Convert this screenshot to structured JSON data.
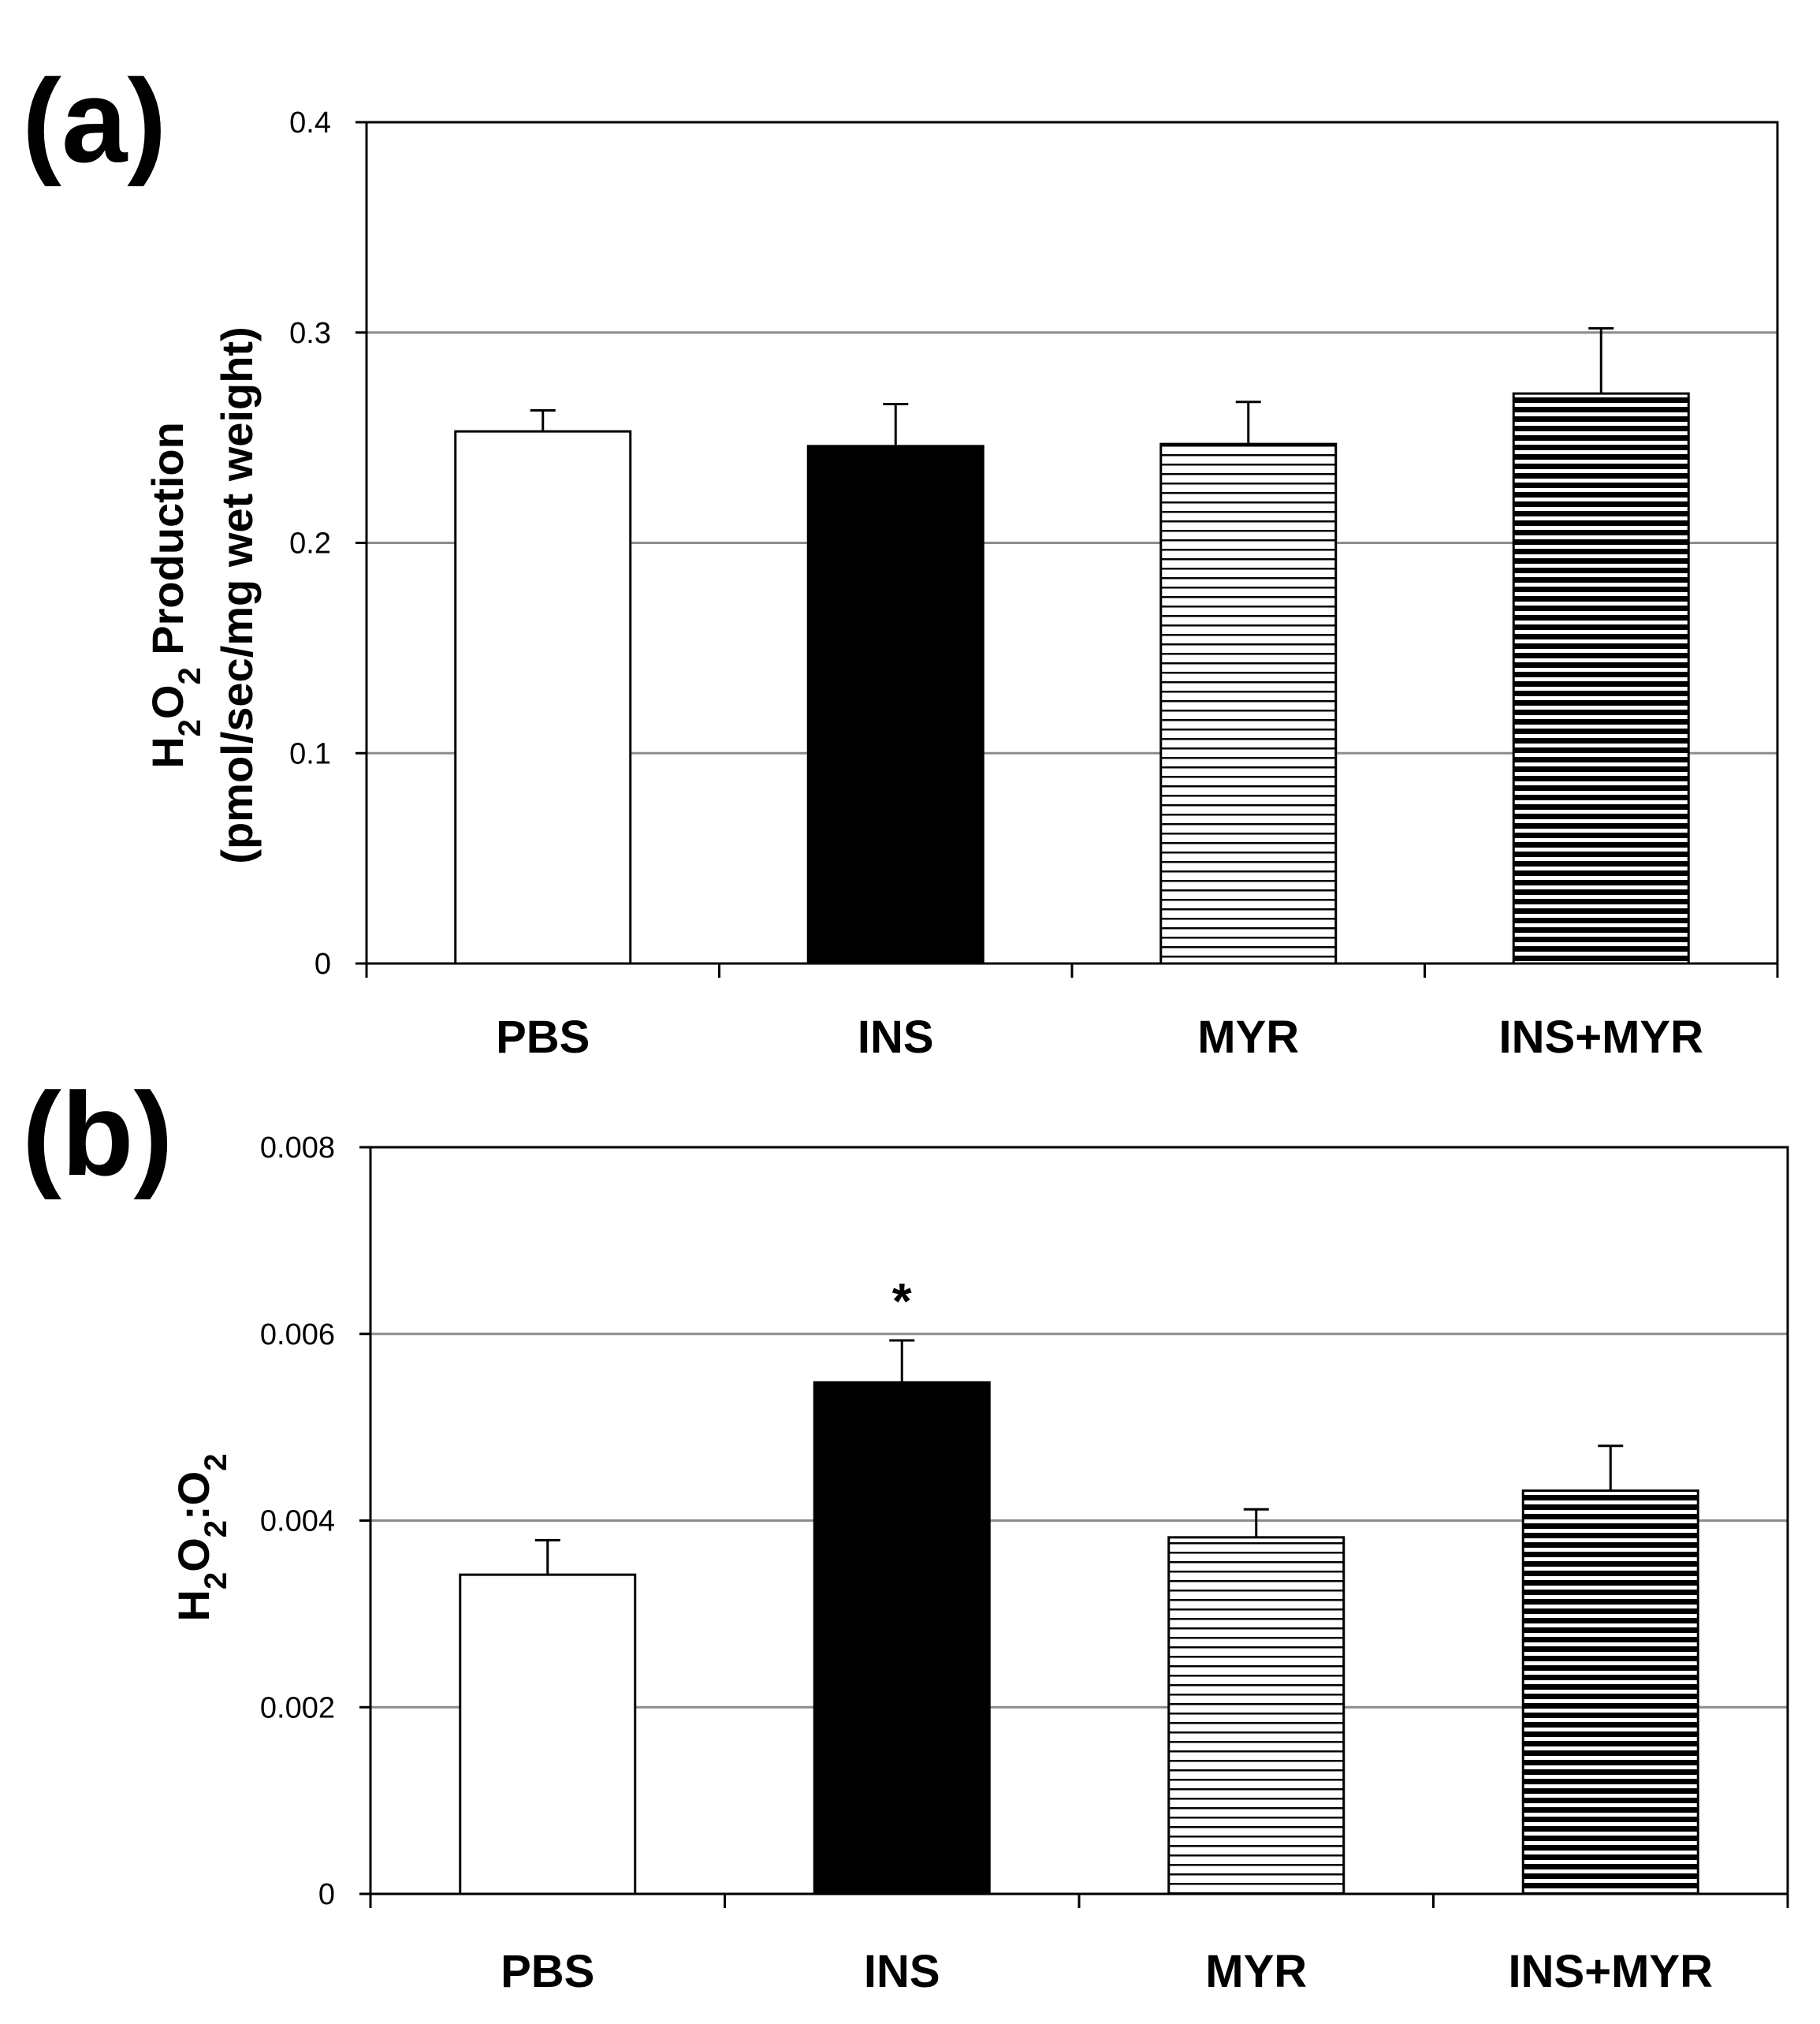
{
  "chart_data": [
    {
      "panel_label": "(a)",
      "type": "bar",
      "categories": [
        "PBS",
        "INS",
        "MYR",
        "INS+MYR"
      ],
      "values": [
        0.253,
        0.246,
        0.247,
        0.271
      ],
      "errors": [
        0.01,
        0.02,
        0.02,
        0.031
      ],
      "patterns": [
        "white",
        "black",
        "thin-stripes",
        "thick-stripes"
      ],
      "ylabel_line1": {
        "prefix": "H",
        "sub1": "2",
        "mid": "O",
        "sub2": "2",
        "suffix": " Production"
      },
      "ylabel_line2": "(pmol/sec/mg wet weight)",
      "ylim": [
        0,
        0.4
      ],
      "yticks": [
        "0",
        "0.1",
        "0.2",
        "0.3",
        "0.4"
      ],
      "ytick_values": [
        0,
        0.1,
        0.2,
        0.3,
        0.4
      ],
      "grid": true,
      "annotations": []
    },
    {
      "panel_label": "(b)",
      "type": "bar",
      "categories": [
        "PBS",
        "INS",
        "MYR",
        "INS+MYR"
      ],
      "values": [
        0.00342,
        0.00548,
        0.00382,
        0.00432
      ],
      "errors": [
        0.00037,
        0.00045,
        0.0003,
        0.00048
      ],
      "patterns": [
        "white",
        "black",
        "thin-stripes",
        "thick-stripes"
      ],
      "ylabel_line1": {
        "prefix": "H",
        "sub1": "2",
        "mid": "O",
        "sub2": "2",
        "suffix": ":O",
        "sub3": "2"
      },
      "ylabel_line2": "",
      "ylim": [
        0,
        0.008
      ],
      "yticks": [
        "0",
        "0.002",
        "0.004",
        "0.006",
        "0.008"
      ],
      "ytick_values": [
        0,
        0.002,
        0.004,
        0.006,
        0.008
      ],
      "grid": true,
      "annotations": [
        {
          "category": "INS",
          "text": "*"
        }
      ]
    }
  ],
  "colors": {
    "bar_fill_black": "#000000",
    "bar_fill_white": "#ffffff",
    "gridline": "#8c8c8c",
    "stripe": "#000000"
  }
}
